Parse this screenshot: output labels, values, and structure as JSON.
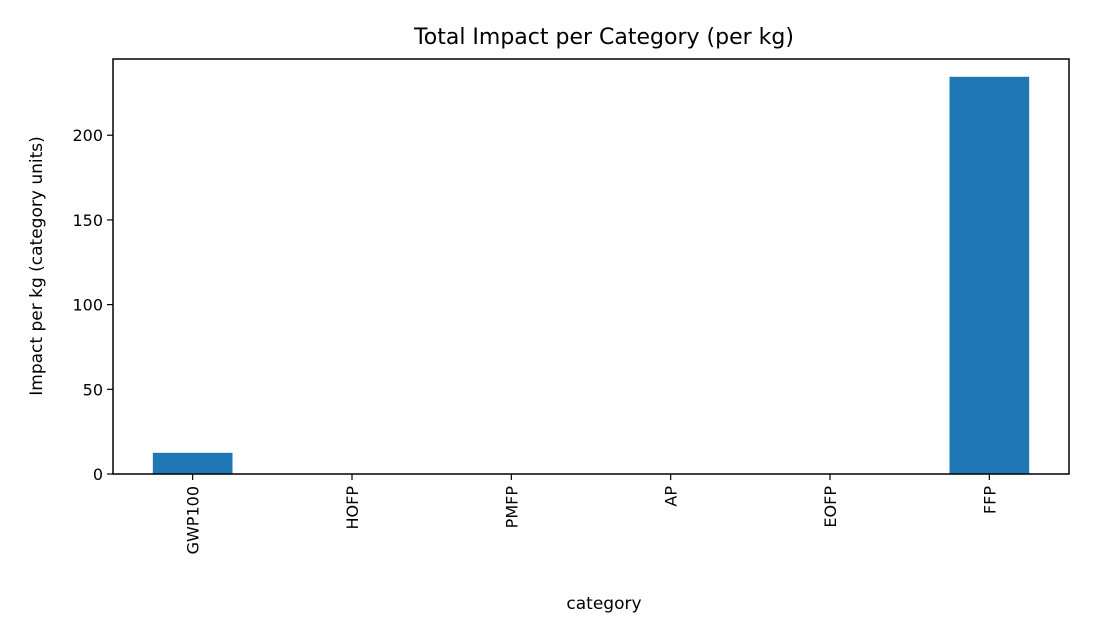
{
  "chart_data": {
    "type": "bar",
    "title": "Total Impact per Category (per kg)",
    "xlabel": "category",
    "ylabel": "Impact per kg (category units)",
    "categories": [
      "GWP100",
      "HOFP",
      "PMFP",
      "AP",
      "EOFP",
      "FFP"
    ],
    "values": [
      12.5,
      0.05,
      0.02,
      0.04,
      0.06,
      234.5
    ],
    "ylim": [
      0,
      245
    ],
    "yticks": [
      0,
      50,
      100,
      150,
      200
    ],
    "grid": false,
    "bar_color": "#1f77b4",
    "tick_label_rotation": "vertical"
  }
}
